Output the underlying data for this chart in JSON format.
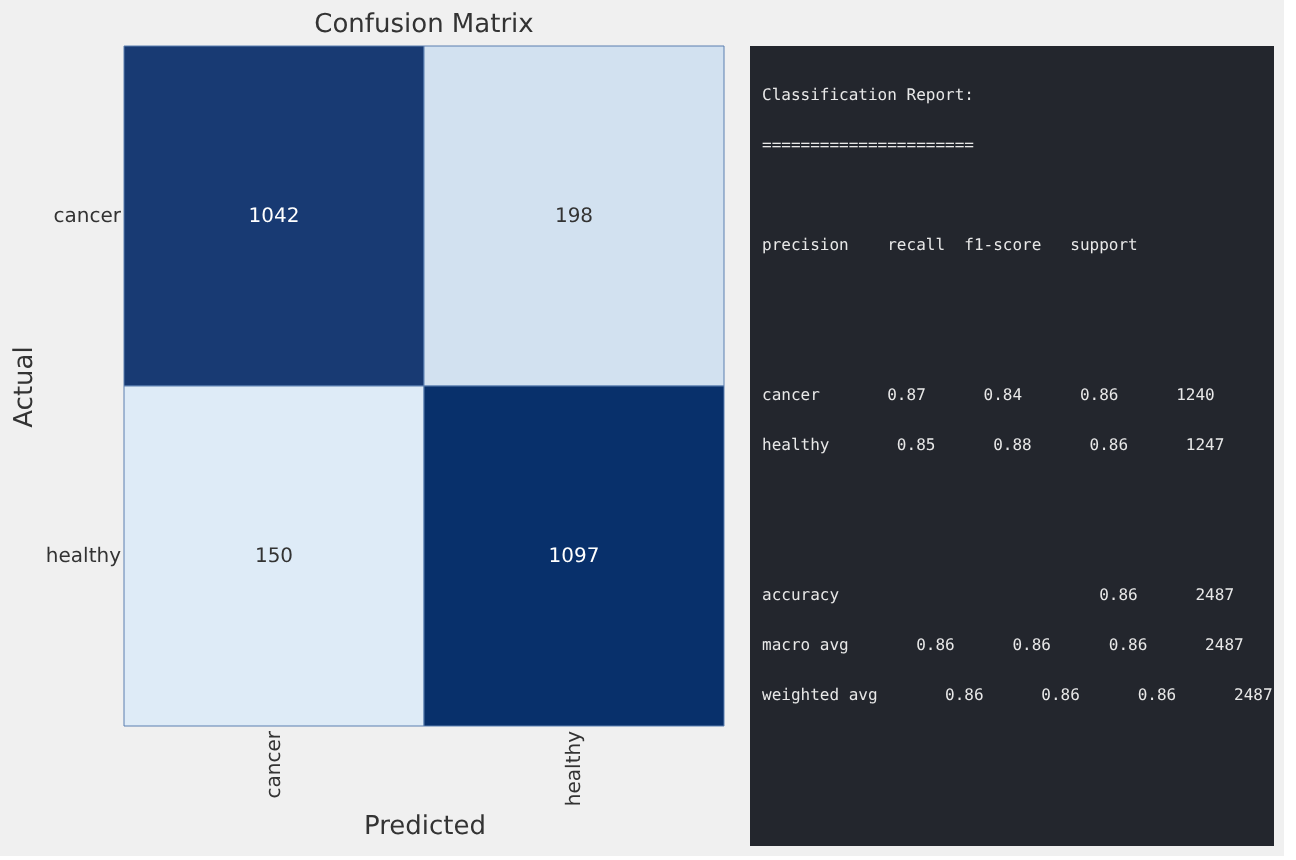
{
  "chart_data": [
    {
      "type": "heatmap",
      "title": "Confusion Matrix",
      "xlabel": "Predicted",
      "ylabel": "Actual",
      "categories": [
        "cancer",
        "healthy"
      ],
      "y_categories": [
        "cancer",
        "healthy"
      ],
      "cells": [
        [
          1042,
          198
        ],
        [
          150,
          1097
        ]
      ],
      "data_labels": true
    },
    {
      "type": "other",
      "title": "Classification Report:",
      "annotations": [
        "======================",
        "              precision    recall  f1-score   support",
        "      cancer       0.87      0.84      0.86      1240",
        "     healthy       0.85      0.88      0.86      1247",
        "    accuracy                           0.86      2487",
        "   macro avg       0.86      0.86      0.86      2487",
        "weighted avg       0.86      0.86      0.86      2487"
      ]
    }
  ]
}
